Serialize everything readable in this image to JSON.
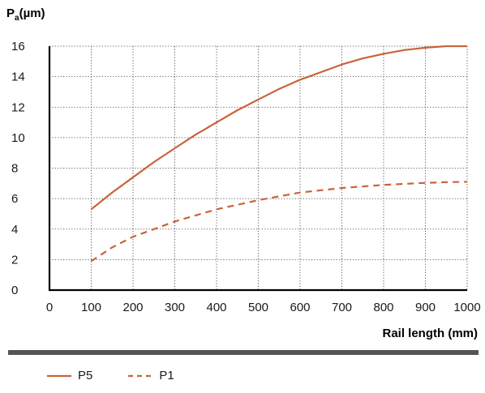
{
  "chart_data": {
    "type": "line",
    "ylabel": {
      "main": "P",
      "sub": "a",
      "unit": "(µm)"
    },
    "xlabel": "Rail length (mm)",
    "xlim": [
      0,
      1000
    ],
    "ylim": [
      0,
      16
    ],
    "xticks": [
      0,
      100,
      200,
      300,
      400,
      500,
      600,
      700,
      800,
      900,
      1000
    ],
    "yticks": [
      0,
      2,
      4,
      6,
      8,
      10,
      12,
      14,
      16
    ],
    "grid": true,
    "legend_placement": "bottom-left",
    "series": [
      {
        "name": "P5",
        "style": "solid",
        "color": "#c8643a",
        "x": [
          100,
          150,
          200,
          250,
          300,
          350,
          400,
          450,
          500,
          550,
          600,
          650,
          700,
          750,
          800,
          850,
          900,
          950,
          1000
        ],
        "y": [
          5.3,
          6.4,
          7.4,
          8.4,
          9.3,
          10.2,
          11.0,
          11.8,
          12.5,
          13.2,
          13.8,
          14.3,
          14.8,
          15.2,
          15.5,
          15.75,
          15.9,
          16.0,
          16.0
        ]
      },
      {
        "name": "P1",
        "style": "dashed",
        "color": "#c8643a",
        "x": [
          100,
          150,
          200,
          250,
          300,
          350,
          400,
          450,
          500,
          550,
          600,
          650,
          700,
          750,
          800,
          850,
          900,
          950,
          1000
        ],
        "y": [
          1.9,
          2.8,
          3.5,
          4.0,
          4.5,
          4.9,
          5.3,
          5.6,
          5.9,
          6.15,
          6.4,
          6.55,
          6.7,
          6.8,
          6.9,
          6.97,
          7.03,
          7.08,
          7.1
        ]
      }
    ]
  }
}
